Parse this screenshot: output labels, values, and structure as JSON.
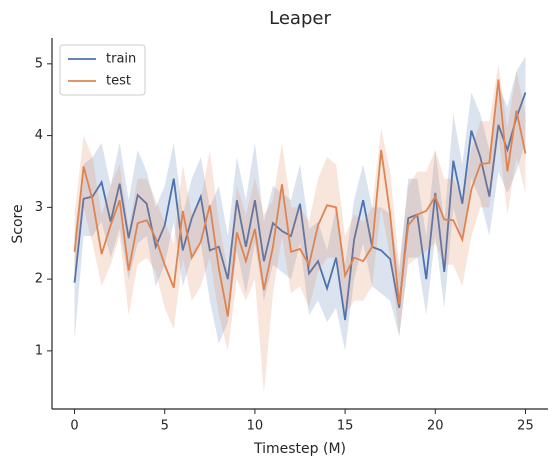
{
  "chart_data": {
    "type": "line",
    "title": "Leaper",
    "xlabel": "Timestep (M)",
    "ylabel": "Score",
    "x": [
      0,
      0.5,
      1,
      1.5,
      2,
      2.5,
      3,
      3.5,
      4,
      4.5,
      5,
      5.5,
      6,
      6.5,
      7,
      7.5,
      8,
      8.5,
      9,
      9.5,
      10,
      10.5,
      11,
      11.5,
      12,
      12.5,
      13,
      13.5,
      14,
      14.5,
      15,
      15.5,
      16,
      16.5,
      17,
      17.5,
      18,
      18.5,
      19,
      19.5,
      20,
      20.5,
      21,
      21.5,
      22,
      22.5,
      23,
      23.5,
      24,
      24.5,
      25
    ],
    "series": [
      {
        "name": "train",
        "color": "#4c72b0",
        "values": [
          1.95,
          3.12,
          3.15,
          3.35,
          2.8,
          3.33,
          2.57,
          3.17,
          3.05,
          2.45,
          2.75,
          3.4,
          2.4,
          2.85,
          3.15,
          2.4,
          2.45,
          2.0,
          3.1,
          2.45,
          3.1,
          2.25,
          2.78,
          2.67,
          2.6,
          3.05,
          2.08,
          2.25,
          1.87,
          2.3,
          1.43,
          2.55,
          3.1,
          2.45,
          2.4,
          2.28,
          1.6,
          2.85,
          2.9,
          2.0,
          3.2,
          2.1,
          3.65,
          3.05,
          4.07,
          3.7,
          3.15,
          4.15,
          3.8,
          4.25,
          4.6
        ],
        "lower": [
          1.15,
          2.6,
          2.6,
          2.8,
          2.3,
          2.7,
          2.0,
          2.5,
          2.6,
          1.9,
          2.2,
          2.8,
          1.9,
          2.3,
          2.5,
          1.7,
          1.1,
          1.4,
          2.4,
          1.8,
          2.5,
          1.7,
          2.2,
          2.1,
          2.0,
          2.5,
          1.5,
          1.7,
          1.4,
          1.6,
          1.0,
          2.0,
          2.5,
          1.9,
          1.8,
          1.7,
          1.2,
          2.3,
          2.3,
          1.5,
          2.6,
          1.6,
          3.0,
          2.5,
          3.4,
          3.1,
          2.6,
          3.5,
          3.2,
          3.5,
          3.9
        ],
        "upper": [
          2.6,
          3.6,
          3.7,
          3.9,
          3.3,
          3.9,
          3.1,
          3.8,
          3.5,
          3.0,
          3.3,
          3.9,
          2.9,
          3.4,
          3.7,
          3.0,
          3.3,
          2.6,
          3.7,
          3.1,
          3.9,
          2.8,
          3.3,
          3.2,
          3.1,
          3.6,
          2.7,
          2.8,
          2.4,
          3.0,
          2.2,
          3.1,
          3.6,
          3.0,
          3.0,
          2.9,
          2.1,
          3.4,
          3.4,
          2.6,
          3.8,
          2.8,
          4.3,
          3.6,
          4.6,
          4.3,
          3.8,
          4.7,
          4.4,
          4.9,
          5.1
        ]
      },
      {
        "name": "test",
        "color": "#dd8452",
        "values": [
          2.38,
          3.57,
          3.1,
          2.35,
          2.75,
          3.1,
          2.12,
          2.78,
          2.82,
          2.57,
          2.2,
          1.88,
          2.95,
          2.3,
          2.52,
          3.03,
          2.15,
          1.48,
          2.65,
          2.25,
          2.7,
          1.85,
          2.45,
          3.32,
          2.38,
          2.42,
          2.2,
          2.75,
          3.03,
          3.0,
          2.05,
          2.3,
          2.25,
          2.45,
          3.8,
          2.9,
          1.65,
          2.75,
          2.9,
          2.95,
          3.15,
          2.83,
          2.82,
          2.55,
          3.25,
          3.6,
          3.62,
          4.78,
          3.5,
          4.35,
          3.75
        ],
        "lower": [
          2.0,
          3.0,
          2.5,
          1.9,
          2.2,
          2.6,
          1.5,
          2.2,
          2.3,
          2.1,
          1.6,
          1.3,
          2.3,
          1.7,
          1.9,
          2.3,
          1.5,
          1.0,
          2.0,
          1.7,
          2.0,
          0.4,
          1.8,
          2.6,
          1.8,
          1.9,
          1.6,
          2.1,
          2.3,
          2.3,
          1.5,
          1.7,
          1.7,
          1.9,
          3.0,
          2.3,
          1.2,
          2.2,
          2.3,
          2.4,
          2.5,
          2.2,
          2.2,
          1.9,
          2.6,
          3.0,
          3.0,
          4.0,
          2.9,
          3.7,
          3.2
        ],
        "upper": [
          2.9,
          4.0,
          3.7,
          2.9,
          3.3,
          3.6,
          2.7,
          3.4,
          3.4,
          3.1,
          2.8,
          2.5,
          3.6,
          2.9,
          3.1,
          3.8,
          2.8,
          2.1,
          3.3,
          2.9,
          3.4,
          2.9,
          3.1,
          3.9,
          3.0,
          3.0,
          2.8,
          3.4,
          3.7,
          3.6,
          2.6,
          2.9,
          2.8,
          3.0,
          4.1,
          3.5,
          2.2,
          3.3,
          3.5,
          3.5,
          3.8,
          3.4,
          3.4,
          3.1,
          3.8,
          4.2,
          4.2,
          5.0,
          4.1,
          4.9,
          4.3
        ]
      }
    ],
    "xlim": [
      -1.25,
      26.25
    ],
    "xticks": [
      0,
      5,
      10,
      15,
      20,
      25
    ],
    "ylim": [
      0.19,
      5.36
    ],
    "yticks": [
      1,
      2,
      3,
      4,
      5
    ],
    "grid": false,
    "legend": "upper left"
  }
}
